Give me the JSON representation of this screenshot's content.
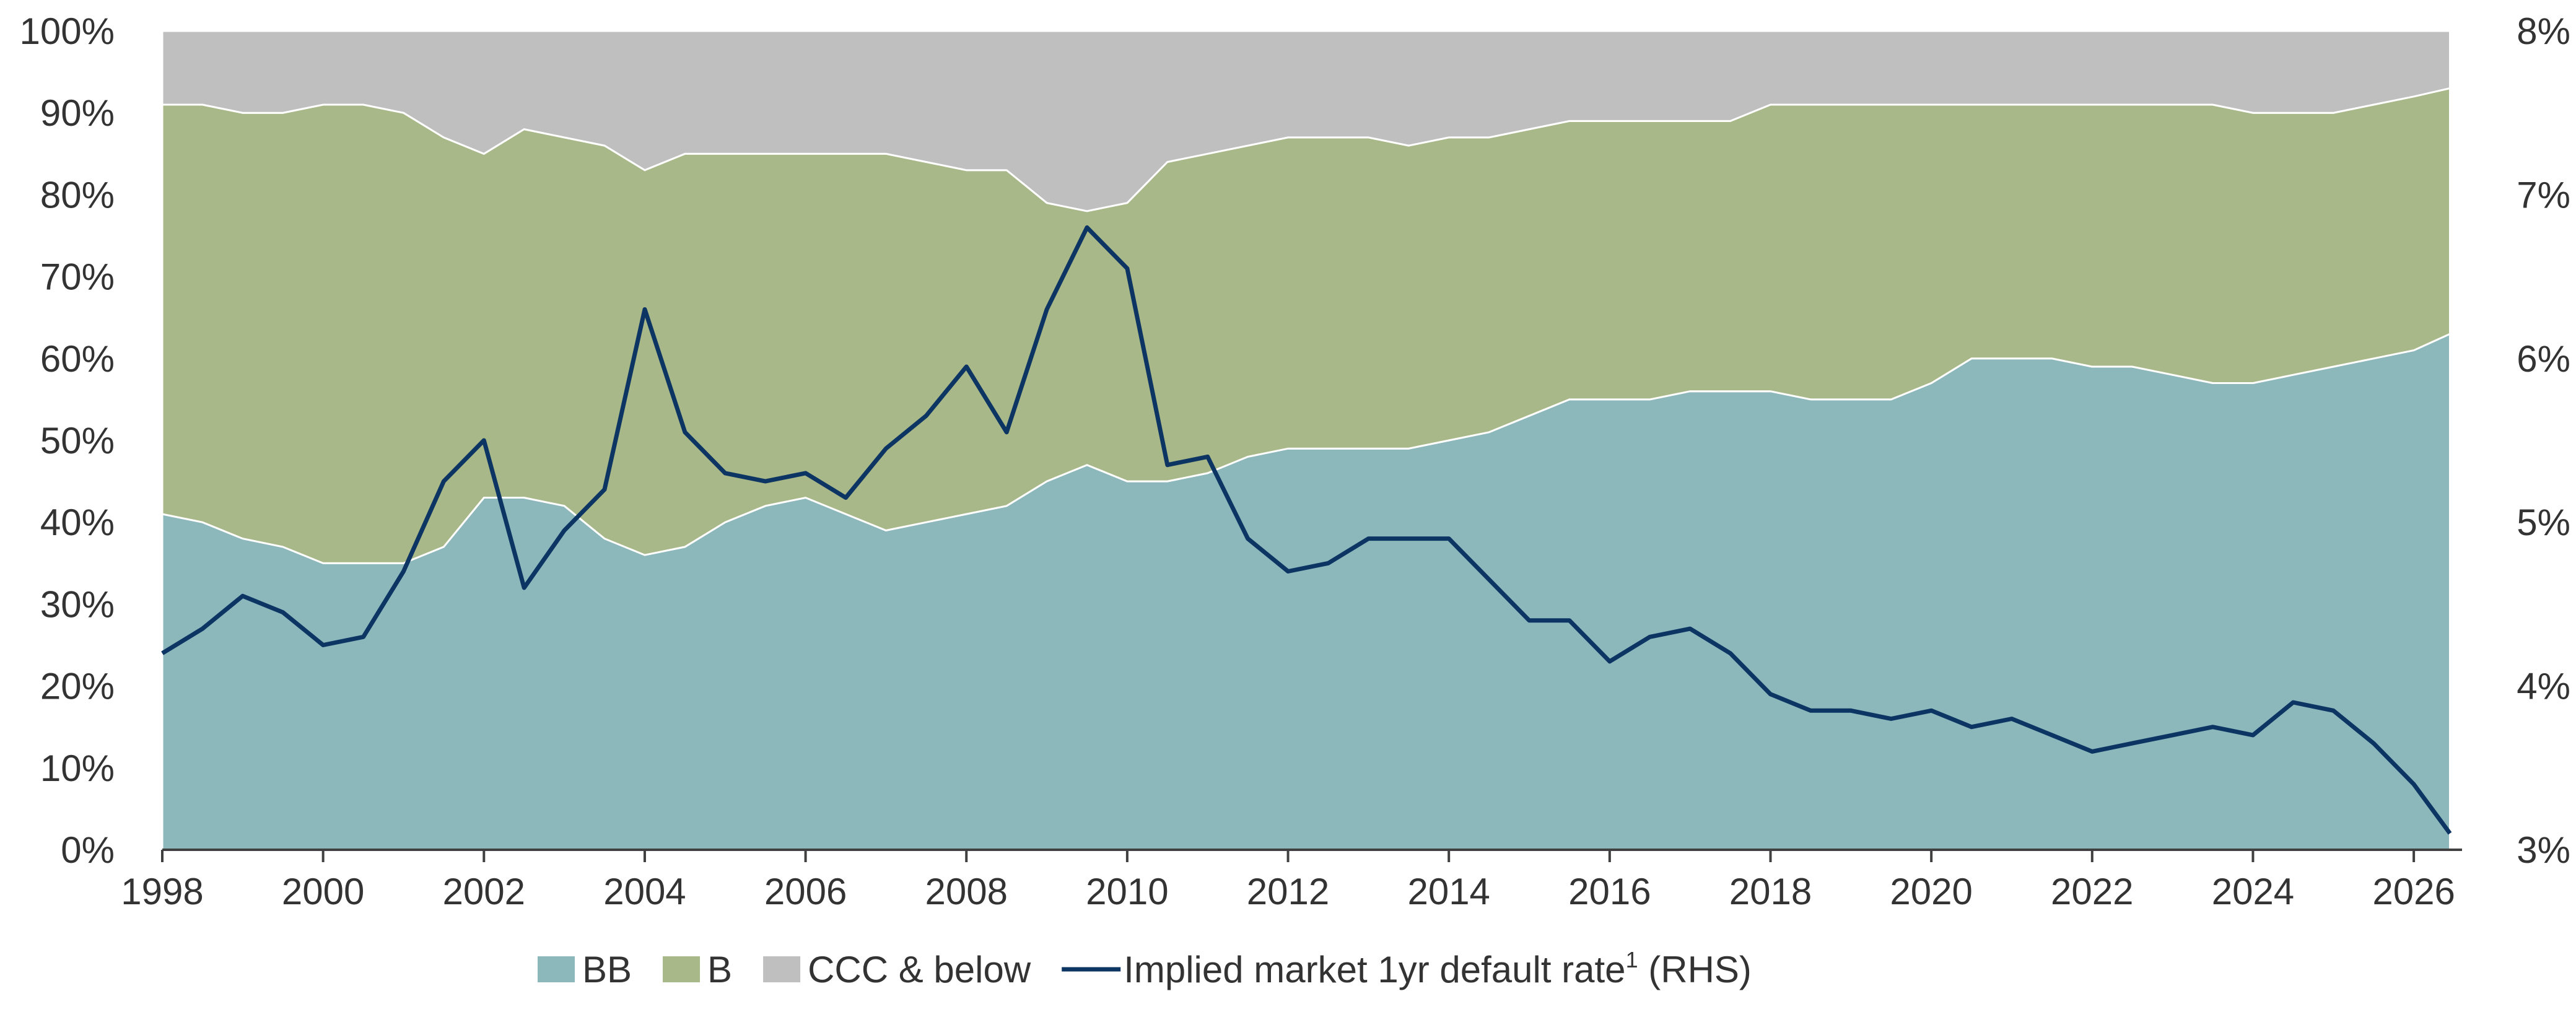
{
  "chart_data": {
    "type": "area",
    "stacked": true,
    "title": "",
    "xlabel": "",
    "ylabel": "",
    "y2label": "",
    "xlim": [
      1998,
      2026.6
    ],
    "x_ticks": [
      1998,
      2000,
      2002,
      2004,
      2006,
      2008,
      2010,
      2012,
      2014,
      2016,
      2018,
      2020,
      2022,
      2024,
      2026
    ],
    "x_tick_labels": [
      "1998",
      "2000",
      "2002",
      "2004",
      "2006",
      "2008",
      "2010",
      "2012",
      "2014",
      "2016",
      "2018",
      "2020",
      "2022",
      "2024",
      "2026"
    ],
    "ylim": [
      0,
      100
    ],
    "y_ticks": [
      0,
      10,
      20,
      30,
      40,
      50,
      60,
      70,
      80,
      90,
      100
    ],
    "y_tick_labels": [
      "0%",
      "10%",
      "20%",
      "30%",
      "40%",
      "50%",
      "60%",
      "70%",
      "80%",
      "90%",
      "100%"
    ],
    "y2lim": [
      3,
      8
    ],
    "y2_ticks": [
      3,
      4,
      5,
      6,
      7,
      8
    ],
    "y2_tick_labels": [
      "3%",
      "4%",
      "5%",
      "6%",
      "7%",
      "8%"
    ],
    "grid": false,
    "legend_position": "bottom",
    "x": [
      1998.0,
      1998.5,
      1999.0,
      1999.5,
      2000.0,
      2000.5,
      2001.0,
      2001.5,
      2002.0,
      2002.5,
      2003.0,
      2003.5,
      2004.0,
      2004.5,
      2005.0,
      2005.5,
      2006.0,
      2006.5,
      2007.0,
      2007.5,
      2008.0,
      2008.5,
      2009.0,
      2009.5,
      2010.0,
      2010.5,
      2011.0,
      2011.5,
      2012.0,
      2012.5,
      2013.0,
      2013.5,
      2014.0,
      2014.5,
      2015.0,
      2015.5,
      2016.0,
      2016.5,
      2017.0,
      2017.5,
      2018.0,
      2018.5,
      2019.0,
      2019.5,
      2020.0,
      2020.5,
      2021.0,
      2021.5,
      2022.0,
      2022.5,
      2023.0,
      2023.5,
      2024.0,
      2024.5,
      2025.0,
      2025.5,
      2026.0,
      2026.45
    ],
    "series": [
      {
        "name": "BB",
        "kind": "area",
        "axis": "left",
        "color": "#8cb8bc",
        "values": [
          41,
          40,
          38,
          37,
          35,
          35,
          35,
          37,
          43,
          43,
          42,
          38,
          36,
          37,
          40,
          42,
          43,
          41,
          39,
          40,
          41,
          42,
          45,
          47,
          45,
          45,
          46,
          48,
          49,
          49,
          49,
          49,
          50,
          51,
          53,
          55,
          55,
          55,
          56,
          56,
          56,
          55,
          55,
          55,
          57,
          60,
          60,
          60,
          59,
          59,
          58,
          57,
          57,
          58,
          59,
          60,
          61,
          63
        ]
      },
      {
        "name": "B",
        "kind": "area",
        "axis": "left",
        "color": "#a9b888",
        "values": [
          50,
          51,
          52,
          53,
          56,
          56,
          55,
          50,
          42,
          45,
          45,
          48,
          47,
          48,
          45,
          43,
          42,
          44,
          46,
          44,
          42,
          41,
          34,
          31,
          34,
          39,
          39,
          38,
          38,
          38,
          38,
          37,
          37,
          36,
          35,
          34,
          34,
          34,
          33,
          33,
          35,
          36,
          36,
          36,
          34,
          31,
          31,
          31,
          32,
          32,
          33,
          34,
          33,
          32,
          31,
          31,
          31,
          30
        ]
      },
      {
        "name": "CCC & below",
        "kind": "area",
        "axis": "left",
        "color": "#bfbfbf",
        "values": [
          9,
          9,
          10,
          10,
          9,
          9,
          10,
          13,
          15,
          12,
          13,
          14,
          17,
          15,
          15,
          15,
          15,
          15,
          15,
          16,
          17,
          17,
          21,
          22,
          21,
          16,
          15,
          14,
          13,
          13,
          13,
          14,
          13,
          13,
          12,
          11,
          11,
          11,
          11,
          11,
          9,
          9,
          9,
          9,
          9,
          9,
          9,
          9,
          9,
          9,
          9,
          9,
          10,
          10,
          10,
          9,
          8,
          7
        ]
      },
      {
        "name": "Implied market 1yr default rate",
        "label_superscript": "1",
        "label_suffix": "(RHS)",
        "kind": "line",
        "axis": "right",
        "color": "#0d3563",
        "values": [
          4.2,
          4.35,
          4.55,
          4.45,
          4.25,
          4.3,
          4.7,
          5.25,
          5.5,
          4.6,
          4.95,
          5.2,
          6.3,
          5.55,
          5.3,
          5.25,
          5.3,
          5.15,
          5.45,
          5.65,
          5.95,
          5.55,
          6.3,
          6.8,
          6.55,
          5.35,
          5.4,
          4.9,
          4.7,
          4.75,
          4.9,
          4.9,
          4.9,
          4.65,
          4.4,
          4.4,
          4.15,
          4.3,
          4.35,
          4.2,
          3.95,
          3.85,
          3.85,
          3.8,
          3.85,
          3.75,
          3.8,
          3.7,
          3.6,
          3.65,
          3.7,
          3.75,
          3.7,
          3.9,
          3.85,
          3.65,
          3.4,
          3.1
        ]
      }
    ]
  }
}
